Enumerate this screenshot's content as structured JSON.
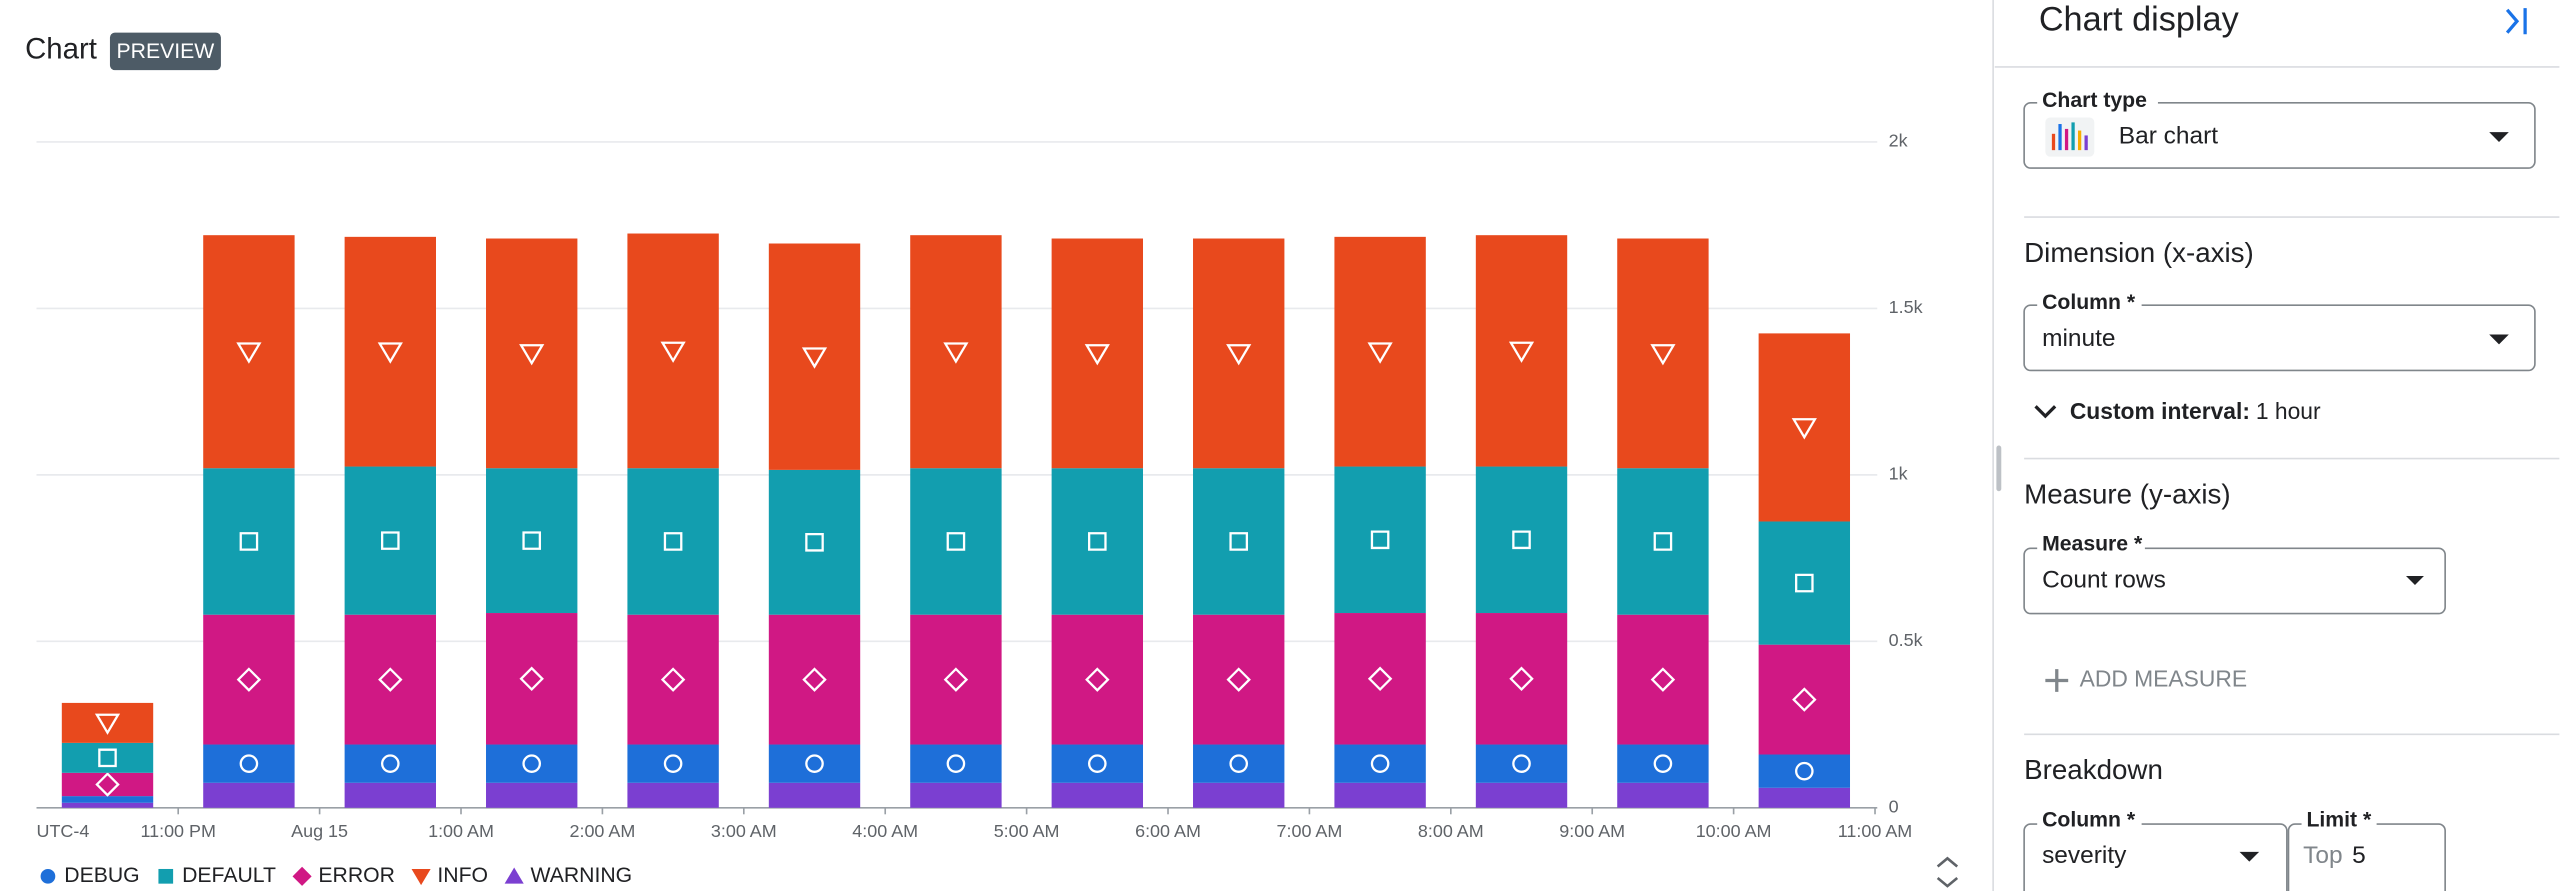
{
  "header": {
    "title": "Chart",
    "badge": "PREVIEW"
  },
  "chart_data": {
    "type": "bar",
    "stacked": true,
    "timezone": "UTC-4",
    "x_labels": [
      "11:00 PM",
      "Aug 15",
      "1:00 AM",
      "2:00 AM",
      "3:00 AM",
      "4:00 AM",
      "5:00 AM",
      "6:00 AM",
      "7:00 AM",
      "8:00 AM",
      "9:00 AM",
      "10:00 AM",
      "11:00 AM"
    ],
    "ylim": [
      0,
      2000
    ],
    "yticks": [
      0,
      {
        "value": 500,
        "label": "0.5k"
      },
      {
        "value": 1000,
        "label": "1k"
      },
      {
        "value": 1500,
        "label": "1.5k"
      },
      {
        "value": 2000,
        "label": "2k"
      }
    ],
    "grid": true,
    "legend": "bottom",
    "series": [
      {
        "name": "WARNING",
        "color": "#7b3fd1",
        "marker": "triangle-up",
        "values": [
          15,
          75,
          75,
          75,
          75,
          75,
          75,
          75,
          75,
          75,
          75,
          75,
          60
        ]
      },
      {
        "name": "DEBUG",
        "color": "#1e6fd9",
        "marker": "circle",
        "values": [
          20,
          115,
          115,
          115,
          115,
          115,
          115,
          115,
          115,
          115,
          115,
          115,
          100
        ]
      },
      {
        "name": "ERROR",
        "color": "#d01884",
        "marker": "diamond",
        "values": [
          70,
          390,
          390,
          395,
          390,
          390,
          390,
          390,
          390,
          395,
          395,
          390,
          330
        ]
      },
      {
        "name": "DEFAULT",
        "color": "#129eaf",
        "marker": "square",
        "values": [
          90,
          440,
          445,
          435,
          440,
          435,
          440,
          440,
          440,
          440,
          440,
          440,
          370
        ]
      },
      {
        "name": "INFO",
        "color": "#e8491d",
        "marker": "triangle-down",
        "values": [
          120,
          700,
          690,
          690,
          705,
          680,
          700,
          690,
          690,
          690,
          695,
          690,
          565
        ]
      }
    ]
  },
  "panel": {
    "title": "Chart display",
    "chart_type_label": "Chart type",
    "chart_type": "Bar chart",
    "dimension_title": "Dimension (x-axis)",
    "column_label": "Column *",
    "column": "minute",
    "interval_label": "Custom interval:",
    "interval": "1 hour",
    "measure_title": "Measure (y-axis)",
    "measure_label": "Measure *",
    "measure": "Count rows",
    "add_measure": "ADD MEASURE",
    "breakdown_title": "Breakdown",
    "breakdown_column_label": "Column *",
    "breakdown_column": "severity",
    "limit_label": "Limit *",
    "limit_prefix": "Top",
    "limit": "5"
  }
}
